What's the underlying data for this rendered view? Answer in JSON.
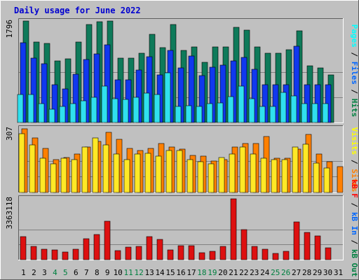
{
  "chart_data": {
    "type": "bar",
    "title": "Daily usage for June 2022",
    "categories": [
      "1",
      "2",
      "3",
      "4",
      "5",
      "6",
      "7",
      "8",
      "9",
      "10",
      "11",
      "12",
      "13",
      "14",
      "15",
      "16",
      "17",
      "18",
      "19",
      "20",
      "21",
      "22",
      "23",
      "24",
      "25",
      "26",
      "27",
      "28",
      "29",
      "30",
      "31"
    ],
    "weekend_days": [
      4,
      5,
      11,
      12,
      18,
      19,
      25,
      26
    ],
    "panels": [
      {
        "id": "pages-files-hits",
        "ymax": 1796,
        "ylabel": "1796",
        "legend": [
          {
            "text": "Pages",
            "color": "#00ffff"
          },
          {
            "text": " / ",
            "color": "#000000"
          },
          {
            "text": "Files",
            "color": "#0066ff"
          },
          {
            "text": " / ",
            "color": "#000000"
          },
          {
            "text": "Hits",
            "color": "#008040"
          }
        ],
        "series": [
          {
            "name": "Hits",
            "color": "#0e7a5a",
            "values": [
              1796,
              1420,
              1400,
              1090,
              1130,
              1420,
              1740,
              1780,
              1800,
              1140,
              1140,
              1230,
              1560,
              1320,
              1730,
              1280,
              1340,
              1070,
              1340,
              1340,
              1680,
              1640,
              1340,
              1230,
              1230,
              1290,
              1620,
              1000,
              970,
              840,
              0
            ]
          },
          {
            "name": "Files",
            "color": "#1038ee",
            "values": [
              1410,
              1140,
              1040,
              670,
              590,
              860,
              1110,
              1220,
              1380,
              760,
              760,
              930,
              1170,
              840,
              1280,
              960,
              1180,
              830,
              980,
              1010,
              1090,
              1150,
              940,
              670,
              670,
              670,
              1350,
              670,
              670,
              670,
              0
            ]
          },
          {
            "name": "Pages",
            "color": "#30e0ee",
            "values": [
              500,
              490,
              330,
              240,
              280,
              330,
              390,
              450,
              650,
              420,
              410,
              440,
              520,
              490,
              880,
              290,
              300,
              290,
              340,
              350,
              460,
              650,
              420,
              290,
              290,
              530,
              470,
              340,
              330,
              330,
              0
            ]
          }
        ]
      },
      {
        "id": "sites-visits",
        "ymax": 307,
        "ylabel": "307",
        "legend": [
          {
            "text": "Visits",
            "color": "#ffff00"
          },
          {
            "text": " / ",
            "color": "#000000"
          },
          {
            "text": "Sites",
            "color": "#ff8000"
          }
        ],
        "series": [
          {
            "name": "Sites",
            "color": "#ff8000",
            "values": [
              307,
              263,
              212,
              159,
              170,
              186,
              220,
              247,
              290,
              258,
              212,
              203,
              212,
              236,
              220,
              208,
              179,
              176,
              153,
              160,
              220,
              236,
              236,
              270,
              166,
              166,
              208,
              279,
              184,
              147,
              126
            ]
          },
          {
            "name": "Visits",
            "color": "#ffe826",
            "values": [
              285,
              230,
              165,
              137,
              165,
              160,
              220,
              262,
              230,
              186,
              159,
              186,
              188,
              176,
              203,
              201,
              159,
              147,
              137,
              170,
              186,
              220,
              186,
              166,
              160,
              160,
              220,
              234,
              143,
              118,
              0
            ]
          }
        ]
      },
      {
        "id": "kb",
        "ymax": 3363118,
        "ylabel": "3363118",
        "legend": [
          {
            "text": "kB F",
            "color": "#ff0000"
          },
          {
            "text": " / ",
            "color": "#000000"
          },
          {
            "text": "kB In",
            "color": "#0066ff"
          },
          {
            "text": " / ",
            "color": "#000000"
          },
          {
            "text": "kB Out",
            "color": "#008040"
          }
        ],
        "series": [
          {
            "name": "kB F",
            "color": "#dd1010",
            "values": [
              1260000,
              720000,
              590000,
              560000,
              440000,
              580000,
              1160000,
              1410000,
              2110000,
              520000,
              700000,
              740000,
              1260000,
              1120000,
              540000,
              770000,
              760000,
              390000,
              460000,
              730000,
              3363118,
              1680000,
              730000,
              580000,
              330000,
              450000,
              2100000,
              1500000,
              1310000,
              650000,
              0
            ]
          }
        ]
      }
    ]
  }
}
